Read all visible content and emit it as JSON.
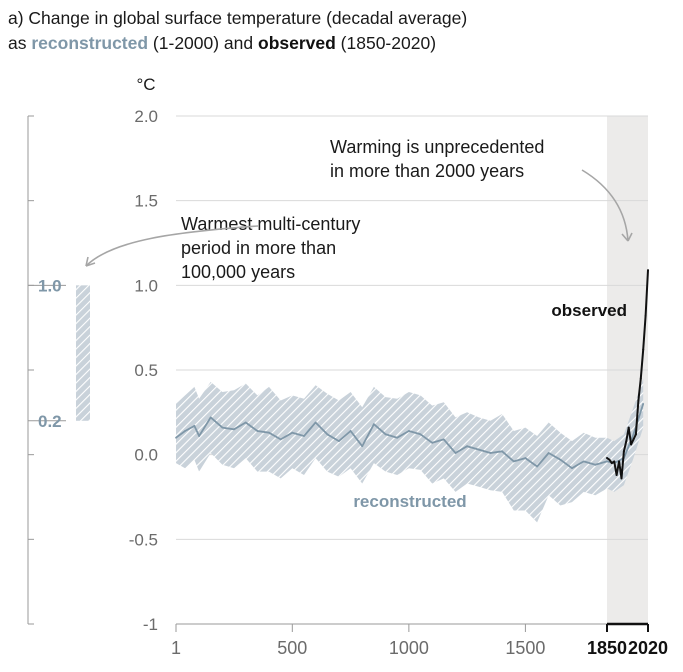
{
  "title": {
    "line1": "a) Change in global surface temperature (decadal average)",
    "line2_prefix": "as ",
    "line2_recon": "reconstructed",
    "line2_mid": " (1-2000) and ",
    "line2_obs": "observed",
    "line2_suffix": " (1850-2020)"
  },
  "colors": {
    "reconstructed": "#7f97a8",
    "band": "#c3cdd6",
    "observed": "#111111",
    "shade": "#ecebea",
    "axis": "#9a9a9a"
  },
  "chart_data": {
    "type": "line",
    "ylabel": "°C",
    "ylim": [
      -1,
      2
    ],
    "xlim": [
      1,
      2020
    ],
    "y_ticks": [
      {
        "value": 2.0,
        "label": "2.0"
      },
      {
        "value": 1.5,
        "label": "1.5"
      },
      {
        "value": 1.0,
        "label": "1.0"
      },
      {
        "value": 0.5,
        "label": "0.5"
      },
      {
        "value": 0.0,
        "label": "0.0"
      },
      {
        "value": -0.5,
        "label": "-0.5"
      },
      {
        "value": -1,
        "label": "-1"
      }
    ],
    "x_ticks": [
      {
        "value": 1,
        "label": "1",
        "bold": false
      },
      {
        "value": 500,
        "label": "500",
        "bold": false
      },
      {
        "value": 1000,
        "label": "1000",
        "bold": false
      },
      {
        "value": 1500,
        "label": "1500",
        "bold": false
      },
      {
        "value": 1850,
        "label": "1850",
        "bold": true
      },
      {
        "value": 2020,
        "label": "2020",
        "bold": true
      }
    ],
    "shaded_period": [
      1850,
      2020
    ],
    "series": [
      {
        "name": "reconstructed",
        "label": "reconstructed",
        "x": [
          1,
          40,
          80,
          100,
          150,
          200,
          250,
          300,
          350,
          400,
          450,
          500,
          550,
          600,
          650,
          700,
          750,
          800,
          850,
          900,
          950,
          1000,
          1050,
          1100,
          1150,
          1200,
          1250,
          1300,
          1350,
          1400,
          1450,
          1500,
          1550,
          1600,
          1650,
          1700,
          1750,
          1800,
          1850,
          1880,
          1920,
          1960,
          2000
        ],
        "values": [
          0.1,
          0.14,
          0.17,
          0.11,
          0.22,
          0.16,
          0.15,
          0.19,
          0.14,
          0.13,
          0.09,
          0.13,
          0.11,
          0.19,
          0.12,
          0.08,
          0.14,
          0.05,
          0.18,
          0.12,
          0.1,
          0.14,
          0.12,
          0.07,
          0.09,
          0.01,
          0.05,
          0.03,
          0.01,
          0.02,
          -0.04,
          -0.02,
          -0.07,
          0.01,
          -0.03,
          -0.08,
          -0.04,
          -0.06,
          -0.04,
          -0.05,
          -0.02,
          0.12,
          0.3
        ],
        "lower": [
          -0.05,
          -0.08,
          -0.03,
          -0.1,
          0.01,
          -0.06,
          -0.08,
          -0.02,
          -0.1,
          -0.1,
          -0.14,
          -0.08,
          -0.12,
          -0.02,
          -0.1,
          -0.13,
          -0.08,
          -0.17,
          -0.05,
          -0.1,
          -0.12,
          -0.08,
          -0.09,
          -0.17,
          -0.14,
          -0.22,
          -0.17,
          -0.19,
          -0.21,
          -0.22,
          -0.33,
          -0.33,
          -0.4,
          -0.24,
          -0.3,
          -0.28,
          -0.22,
          -0.24,
          -0.2,
          -0.22,
          -0.18,
          -0.02,
          0.16
        ],
        "upper": [
          0.3,
          0.35,
          0.4,
          0.33,
          0.43,
          0.37,
          0.38,
          0.42,
          0.35,
          0.4,
          0.32,
          0.35,
          0.33,
          0.41,
          0.36,
          0.32,
          0.37,
          0.28,
          0.4,
          0.34,
          0.33,
          0.37,
          0.35,
          0.29,
          0.31,
          0.22,
          0.25,
          0.22,
          0.2,
          0.24,
          0.14,
          0.16,
          0.11,
          0.19,
          0.13,
          0.08,
          0.13,
          0.1,
          0.1,
          0.08,
          0.12,
          0.28,
          0.45
        ]
      },
      {
        "name": "observed",
        "label": "observed",
        "x": [
          1850,
          1860,
          1870,
          1880,
          1890,
          1900,
          1910,
          1920,
          1930,
          1940,
          1950,
          1960,
          1970,
          1980,
          1990,
          2000,
          2010,
          2020
        ],
        "values": [
          -0.02,
          -0.03,
          -0.05,
          -0.04,
          -0.12,
          -0.04,
          -0.14,
          0.02,
          0.08,
          0.16,
          0.06,
          0.09,
          0.12,
          0.32,
          0.45,
          0.62,
          0.82,
          1.09
        ]
      }
    ],
    "range_bar": {
      "low": 0.2,
      "high": 1.0,
      "low_label": "0.2",
      "high_label": "1.0"
    },
    "annotations": [
      {
        "id": "warmest",
        "lines": [
          "Warmest multi-century",
          "period in more than",
          "100,000 years"
        ]
      },
      {
        "id": "unprecedented",
        "lines": [
          "Warming is unprecedented",
          "in more than 2000 years"
        ]
      }
    ]
  }
}
